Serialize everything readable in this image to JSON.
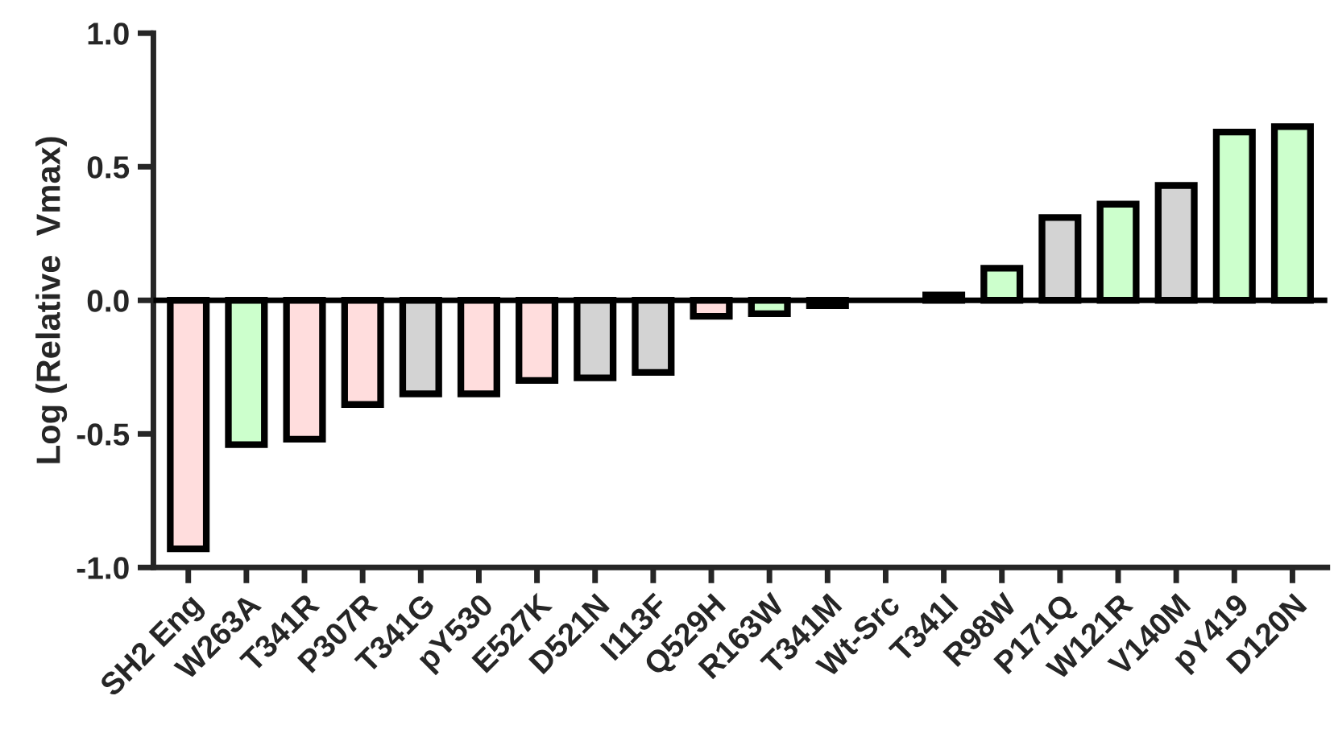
{
  "chart_data": {
    "type": "bar",
    "ylabel": "Log (Relative  Vmax)",
    "categories": [
      "SH2 Eng",
      "W263A",
      "T341R",
      "P307R",
      "T341G",
      "pY530",
      "E527K",
      "D521N",
      "I113F",
      "Q529H",
      "R163W",
      "T341M",
      "Wt-Src",
      "T341I",
      "R98W",
      "P171Q",
      "W121R",
      "V140M",
      "pY419",
      "D120N"
    ],
    "values": [
      -0.93,
      -0.54,
      -0.52,
      -0.39,
      -0.35,
      -0.35,
      -0.3,
      -0.29,
      -0.27,
      -0.06,
      -0.05,
      -0.02,
      null,
      0.02,
      0.12,
      0.31,
      0.36,
      0.43,
      0.63,
      0.65
    ],
    "colors": [
      "#ffdddd",
      "#ccffcc",
      "#ffdddd",
      "#ffdddd",
      "#d3d3d3",
      "#ffdddd",
      "#ffdddd",
      "#d3d3d3",
      "#d3d3d3",
      "#ffdddd",
      "#ccffcc",
      "#d3d3d3",
      null,
      "#d3d3d3",
      "#ccffcc",
      "#d3d3d3",
      "#ccffcc",
      "#d3d3d3",
      "#ccffcc",
      "#ccffcc"
    ],
    "ylim": [
      -1.0,
      1.0
    ],
    "yticks": [
      {
        "value": -1.0,
        "label": "-1.0"
      },
      {
        "value": -0.5,
        "label": "-0.5"
      },
      {
        "value": 0.0,
        "label": "0.0"
      },
      {
        "value": 0.5,
        "label": "0.5"
      },
      {
        "value": 1.0,
        "label": "1.0"
      }
    ],
    "ref_lines": [
      {
        "axis": "y",
        "value": 0,
        "color": "#000000"
      }
    ],
    "grid": false
  }
}
